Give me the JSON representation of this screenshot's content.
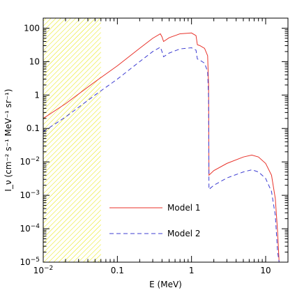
{
  "chart_data": {
    "type": "line",
    "xlabel": "E (MeV)",
    "ylabel": "I_ν (cm⁻² s⁻¹ MeV⁻¹ sr⁻¹)",
    "xscale": "log",
    "yscale": "log",
    "xlim": [
      0.01,
      20
    ],
    "ylim": [
      1e-05,
      200
    ],
    "x_tick_labels": [
      {
        "v": 0.01,
        "base": "10",
        "exp": "−2"
      },
      {
        "v": 0.1,
        "base": "0.1",
        "exp": ""
      },
      {
        "v": 1,
        "base": "1",
        "exp": ""
      },
      {
        "v": 10,
        "base": "10",
        "exp": ""
      }
    ],
    "y_tick_labels": [
      {
        "v": 100,
        "base": "100",
        "exp": ""
      },
      {
        "v": 10,
        "base": "10",
        "exp": ""
      },
      {
        "v": 1,
        "base": "1",
        "exp": ""
      },
      {
        "v": 0.1,
        "base": "0.1",
        "exp": ""
      },
      {
        "v": 0.01,
        "base": "10",
        "exp": "−2"
      },
      {
        "v": 0.001,
        "base": "10",
        "exp": "−3"
      },
      {
        "v": 0.0001,
        "base": "10",
        "exp": "−4"
      },
      {
        "v": 1e-05,
        "base": "10",
        "exp": "−5"
      }
    ],
    "shaded_region": {
      "x_range": [
        0.01,
        0.06
      ],
      "color": "#e6e600"
    },
    "legend_position": "lower-center",
    "series": [
      {
        "name": "Model 1",
        "color": "#e8322a",
        "dash": "solid",
        "x": [
          0.01,
          0.02,
          0.05,
          0.1,
          0.2,
          0.3,
          0.38,
          0.4,
          0.42,
          0.5,
          0.7,
          1.0,
          1.15,
          1.2,
          1.3,
          1.5,
          1.65,
          1.7,
          1.72,
          2.0,
          3.0,
          5.0,
          6.5,
          8.0,
          10.0,
          12.0,
          13.5,
          14.5,
          15.2
        ],
        "y": [
          0.2,
          0.55,
          2.5,
          7.5,
          25,
          50,
          68,
          55,
          40,
          52,
          68,
          72,
          60,
          32,
          30,
          25,
          15,
          2,
          0.004,
          0.0055,
          0.009,
          0.014,
          0.016,
          0.014,
          0.009,
          0.004,
          0.0008,
          8e-05,
          1e-05
        ]
      },
      {
        "name": "Model 2",
        "color": "#3c3cd2",
        "dash": "dashed",
        "x": [
          0.01,
          0.02,
          0.05,
          0.1,
          0.2,
          0.3,
          0.38,
          0.4,
          0.42,
          0.5,
          0.7,
          1.0,
          1.15,
          1.2,
          1.3,
          1.5,
          1.65,
          1.7,
          1.72,
          2.0,
          3.0,
          5.0,
          6.5,
          8.0,
          10.0,
          12.0,
          13.5,
          14.5,
          15.2
        ],
        "y": [
          0.08,
          0.22,
          1.0,
          3.0,
          10,
          20,
          27,
          20,
          14,
          18,
          24,
          26,
          22,
          12,
          11,
          9,
          5,
          0.8,
          0.0015,
          0.002,
          0.0033,
          0.005,
          0.0058,
          0.005,
          0.0032,
          0.0013,
          0.00025,
          2e-05,
          1e-05
        ]
      }
    ]
  }
}
